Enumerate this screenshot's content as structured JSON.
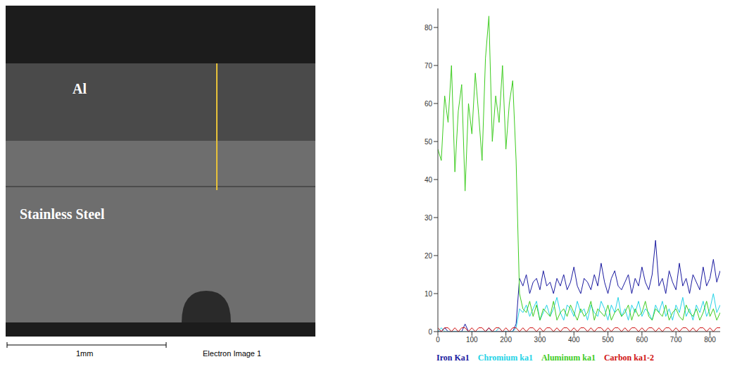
{
  "image": {
    "labels": [
      "Al",
      "Stainless Steel"
    ],
    "scale_bar": "1mm",
    "caption": "Electron Image 1"
  },
  "chart_data": {
    "type": "line",
    "x": [
      0,
      10,
      20,
      30,
      40,
      50,
      60,
      70,
      80,
      90,
      100,
      110,
      120,
      130,
      140,
      150,
      160,
      170,
      180,
      190,
      200,
      210,
      220,
      230,
      240,
      250,
      260,
      270,
      280,
      290,
      300,
      310,
      320,
      330,
      340,
      350,
      360,
      370,
      380,
      390,
      400,
      410,
      420,
      430,
      440,
      450,
      460,
      470,
      480,
      490,
      500,
      510,
      520,
      530,
      540,
      550,
      560,
      570,
      580,
      590,
      600,
      610,
      620,
      630,
      640,
      650,
      660,
      670,
      680,
      690,
      700,
      710,
      720,
      730,
      740,
      750,
      760,
      770,
      780,
      790,
      800,
      810,
      820,
      830
    ],
    "series": [
      {
        "name": "Iron Ka1",
        "color": "#1a1aa0",
        "values": [
          0,
          0,
          1,
          0,
          0,
          0,
          0,
          0,
          2,
          0,
          0,
          0,
          0,
          0,
          0,
          1,
          0,
          0,
          0,
          0,
          0,
          0,
          0,
          2,
          14,
          12,
          15,
          10,
          13,
          14,
          11,
          16,
          12,
          13,
          10,
          14,
          12,
          15,
          11,
          13,
          17,
          12,
          10,
          14,
          13,
          11,
          15,
          12,
          18,
          13,
          10,
          14,
          16,
          12,
          11,
          13,
          15,
          10,
          14,
          12,
          17,
          13,
          11,
          15,
          24,
          12,
          14,
          10,
          16,
          13,
          11,
          18,
          12,
          14,
          10,
          15,
          13,
          11,
          17,
          12,
          14,
          19,
          13,
          16
        ]
      },
      {
        "name": "Chromium ka1",
        "color": "#22d3e6",
        "values": [
          0,
          1,
          0,
          0,
          0,
          0,
          0,
          0,
          0,
          0,
          0,
          0,
          0,
          0,
          0,
          0,
          0,
          0,
          1,
          0,
          0,
          0,
          0,
          1,
          6,
          5,
          7,
          4,
          6,
          8,
          3,
          5,
          7,
          4,
          6,
          9,
          5,
          3,
          7,
          6,
          4,
          8,
          5,
          6,
          3,
          7,
          5,
          4,
          8,
          6,
          3,
          7,
          5,
          9,
          4,
          6,
          3,
          7,
          5,
          8,
          4,
          6,
          5,
          3,
          7,
          5,
          8,
          4,
          6,
          3,
          7,
          5,
          9,
          4,
          6,
          3,
          7,
          5,
          8,
          4,
          6,
          10,
          5,
          7
        ]
      },
      {
        "name": "Aluminum ka1",
        "color": "#3ccc1e",
        "values": [
          48,
          45,
          62,
          55,
          70,
          42,
          58,
          65,
          37,
          60,
          52,
          68,
          57,
          45,
          72,
          83,
          50,
          62,
          55,
          70,
          48,
          60,
          66,
          45,
          10,
          6,
          5,
          8,
          4,
          7,
          3,
          6,
          5,
          4,
          8,
          3,
          5,
          6,
          4,
          7,
          5,
          3,
          6,
          4,
          5,
          8,
          3,
          6,
          5,
          4,
          7,
          3,
          5,
          6,
          4,
          5,
          7,
          3,
          6,
          4,
          5,
          8,
          4,
          3,
          6,
          5,
          4,
          7,
          3,
          5,
          6,
          4,
          3,
          7,
          5,
          4,
          6,
          3,
          5,
          8,
          4,
          6,
          3,
          5
        ]
      },
      {
        "name": "Carbon ka1-2",
        "color": "#d01010",
        "values": [
          1,
          0,
          1,
          1,
          0,
          1,
          0,
          1,
          1,
          0,
          1,
          0,
          1,
          1,
          0,
          1,
          0,
          1,
          1,
          0,
          1,
          0,
          1,
          1,
          0,
          1,
          0,
          1,
          1,
          0,
          1,
          0,
          1,
          1,
          0,
          1,
          0,
          1,
          1,
          0,
          1,
          0,
          1,
          1,
          0,
          1,
          0,
          1,
          1,
          0,
          1,
          0,
          1,
          1,
          0,
          1,
          0,
          1,
          1,
          0,
          1,
          0,
          1,
          1,
          0,
          1,
          0,
          1,
          1,
          0,
          1,
          0,
          1,
          1,
          0,
          1,
          0,
          1,
          1,
          0,
          1,
          0,
          1,
          1
        ]
      }
    ],
    "xlim": [
      0,
      830
    ],
    "xticks": [
      0,
      100,
      200,
      300,
      400,
      500,
      600,
      700,
      800
    ],
    "ylim": [
      0,
      85
    ],
    "yticks": [
      0,
      10,
      20,
      30,
      40,
      50,
      60,
      70,
      80
    ],
    "grid": false,
    "legend": "bottom"
  }
}
